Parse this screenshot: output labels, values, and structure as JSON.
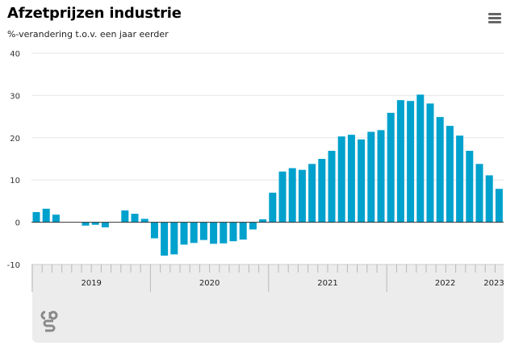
{
  "header": {
    "title": "Afzetprijzen industrie",
    "subtitle": "%-verandering t.o.v. een jaar eerder"
  },
  "menu_icon": "hamburger-menu-icon",
  "logo_icon": "cbs-logo-icon",
  "colors": {
    "bar": "#00a1cd",
    "axis": "#333333",
    "grid": "#e6e6e6"
  },
  "chart_data": {
    "type": "bar",
    "title": "Afzetprijzen industrie",
    "subtitle": "%-verandering t.o.v. een jaar eerder",
    "ylim": [
      -10,
      40
    ],
    "yticks": [
      -10,
      0,
      10,
      20,
      30,
      40
    ],
    "grid": true,
    "x_start": "2019-01",
    "year_labels": [
      "2019",
      "2020",
      "2021",
      "2022",
      "2023"
    ],
    "categories": [
      "2019-01",
      "2019-02",
      "2019-03",
      "2019-04",
      "2019-05",
      "2019-06",
      "2019-07",
      "2019-08",
      "2019-09",
      "2019-10",
      "2019-11",
      "2019-12",
      "2020-01",
      "2020-02",
      "2020-03",
      "2020-04",
      "2020-05",
      "2020-06",
      "2020-07",
      "2020-08",
      "2020-09",
      "2020-10",
      "2020-11",
      "2020-12",
      "2021-01",
      "2021-02",
      "2021-03",
      "2021-04",
      "2021-05",
      "2021-06",
      "2021-07",
      "2021-08",
      "2021-09",
      "2021-10",
      "2021-11",
      "2021-12",
      "2022-01",
      "2022-02",
      "2022-03",
      "2022-04",
      "2022-05",
      "2022-06",
      "2022-07",
      "2022-08",
      "2022-09",
      "2022-10",
      "2022-11",
      "2022-12",
      "2023-01"
    ],
    "values": [
      2.4,
      3.2,
      1.8,
      0.0,
      0.0,
      -0.8,
      -0.6,
      -1.2,
      0.0,
      2.8,
      2.0,
      0.8,
      -3.8,
      -7.9,
      -7.6,
      -5.3,
      -4.9,
      -4.2,
      -5.1,
      -5.0,
      -4.5,
      -4.1,
      -1.7,
      0.7,
      7.0,
      12.0,
      12.8,
      12.4,
      13.8,
      15.0,
      16.9,
      20.3,
      20.7,
      19.6,
      21.4,
      21.8,
      25.9,
      28.9,
      28.7,
      30.2,
      28.1,
      24.9,
      22.8,
      20.5,
      16.9,
      13.8,
      11.1,
      7.9,
      null
    ]
  }
}
